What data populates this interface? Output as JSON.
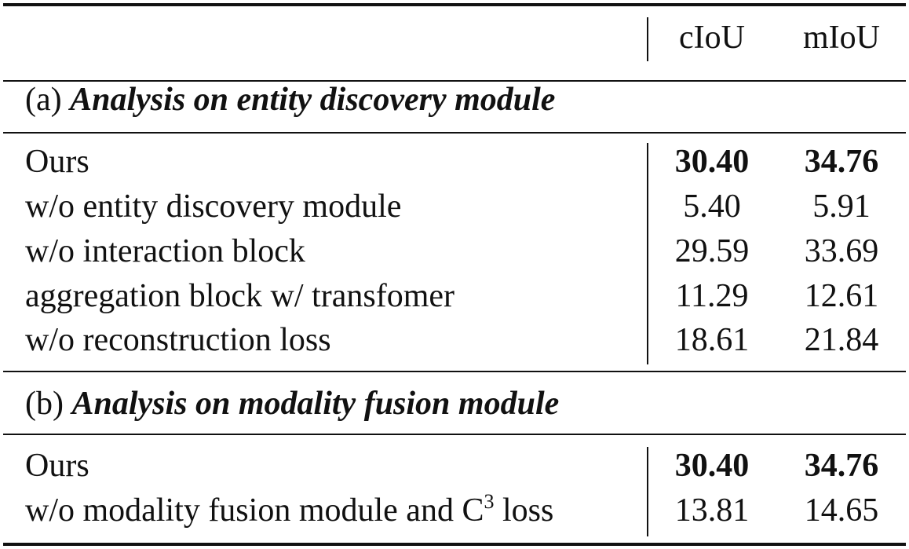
{
  "header": {
    "col1": "cIoU",
    "col2": "mIoU"
  },
  "sections": [
    {
      "prefix": "(a)",
      "title": "Analysis on entity discovery module",
      "rows": [
        {
          "label": "Ours",
          "ciou": "30.40",
          "miou": "34.76",
          "bold": true
        },
        {
          "label": "w/o entity discovery module",
          "ciou": "5.40",
          "miou": "5.91"
        },
        {
          "label": "w/o interaction block",
          "ciou": "29.59",
          "miou": "33.69"
        },
        {
          "label": "aggregation block w/ transfomer",
          "ciou": "11.29",
          "miou": "12.61"
        },
        {
          "label": "w/o reconstruction loss",
          "ciou": "18.61",
          "miou": "21.84"
        }
      ]
    },
    {
      "prefix": "(b)",
      "title": "Analysis on modality fusion module",
      "rows": [
        {
          "label": "Ours",
          "ciou": "30.40",
          "miou": "34.76",
          "bold": true
        },
        {
          "label_pre": "w/o modality fusion module and C",
          "label_sup": "3",
          "label_post": " loss",
          "ciou": "13.81",
          "miou": "14.65"
        }
      ]
    }
  ]
}
